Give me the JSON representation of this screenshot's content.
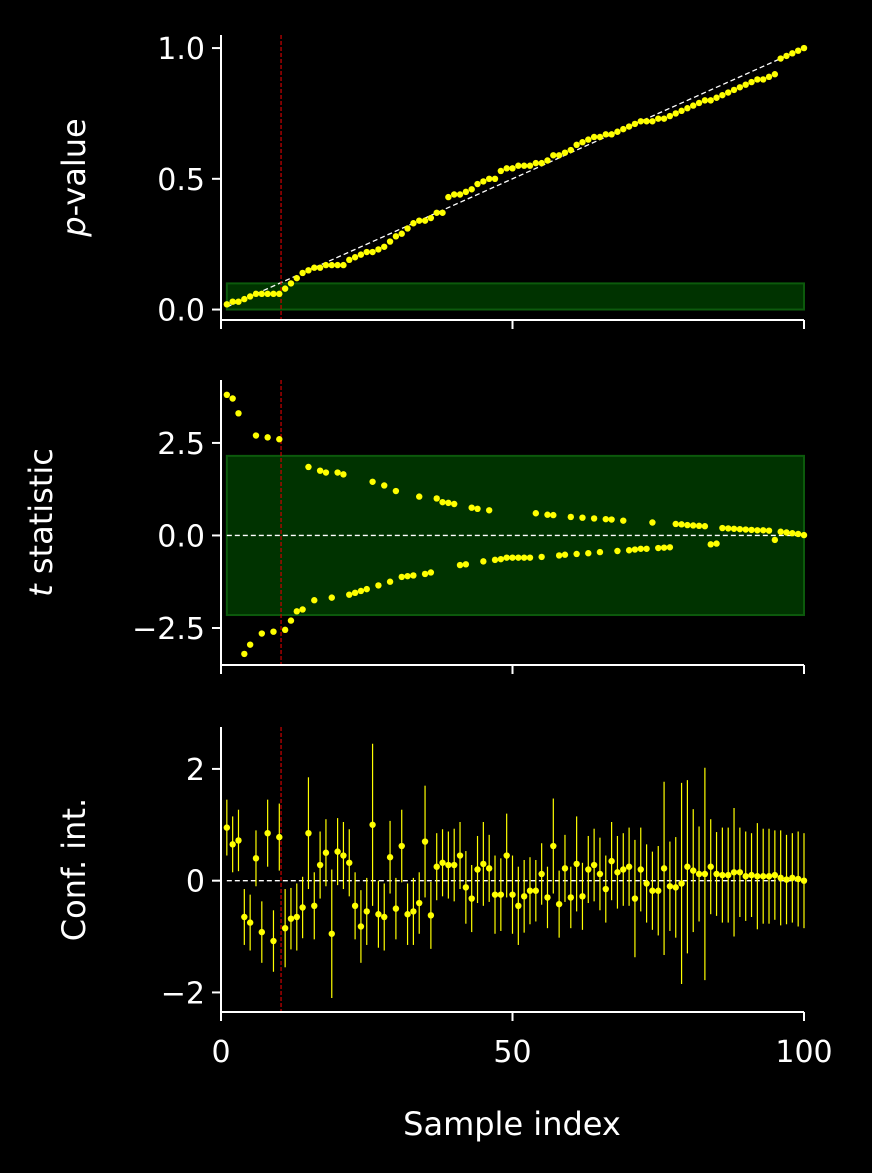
{
  "colors": {
    "background": "#000000",
    "axis": "#ffffff",
    "points": "#ffff00",
    "band": "#003300",
    "band_edge": "#0c5a0c",
    "cutoff": "#cc0000",
    "reference": "#ffffff"
  },
  "xlabel": "Sample index",
  "cutoff_x": 10.3,
  "chart_data": [
    {
      "id": "pvalue",
      "type": "scatter",
      "ylabel": "p-value",
      "ylabel_prefix": "p",
      "ylabel_suffix": "-value",
      "xlim": [
        0,
        100
      ],
      "ylim": [
        -0.04,
        1.05
      ],
      "xticks": [
        0,
        50,
        100
      ],
      "xticklabels": [
        "",
        "",
        ""
      ],
      "yticks": [
        0.0,
        0.5,
        1.0
      ],
      "yticklabels": [
        "0.0",
        "0.5",
        "1.0"
      ],
      "reference_line": {
        "type": "diagonal",
        "from": [
          1,
          0.01
        ],
        "to": [
          100,
          1.0
        ]
      },
      "band": {
        "x": [
          1,
          100
        ],
        "y": [
          0.0,
          0.1
        ]
      },
      "x": [
        1,
        2,
        3,
        4,
        5,
        6,
        7,
        8,
        9,
        10,
        11,
        12,
        13,
        14,
        15,
        16,
        17,
        18,
        19,
        20,
        21,
        22,
        23,
        24,
        25,
        26,
        27,
        28,
        29,
        30,
        31,
        32,
        33,
        34,
        35,
        36,
        37,
        38,
        39,
        40,
        41,
        42,
        43,
        44,
        45,
        46,
        47,
        48,
        49,
        50,
        51,
        52,
        53,
        54,
        55,
        56,
        57,
        58,
        59,
        60,
        61,
        62,
        63,
        64,
        65,
        66,
        67,
        68,
        69,
        70,
        71,
        72,
        73,
        74,
        75,
        76,
        77,
        78,
        79,
        80,
        81,
        82,
        83,
        84,
        85,
        86,
        87,
        88,
        89,
        90,
        91,
        92,
        93,
        94,
        95,
        96,
        97,
        98,
        99,
        100
      ],
      "y": [
        0.02,
        0.03,
        0.03,
        0.04,
        0.05,
        0.06,
        0.06,
        0.06,
        0.06,
        0.06,
        0.08,
        0.1,
        0.12,
        0.14,
        0.15,
        0.16,
        0.16,
        0.17,
        0.17,
        0.17,
        0.17,
        0.19,
        0.2,
        0.21,
        0.22,
        0.22,
        0.23,
        0.24,
        0.26,
        0.28,
        0.29,
        0.31,
        0.33,
        0.34,
        0.34,
        0.35,
        0.37,
        0.37,
        0.43,
        0.44,
        0.44,
        0.45,
        0.46,
        0.48,
        0.49,
        0.5,
        0.5,
        0.53,
        0.54,
        0.54,
        0.55,
        0.55,
        0.55,
        0.56,
        0.56,
        0.57,
        0.59,
        0.59,
        0.6,
        0.61,
        0.63,
        0.64,
        0.65,
        0.66,
        0.66,
        0.67,
        0.67,
        0.68,
        0.69,
        0.7,
        0.71,
        0.72,
        0.72,
        0.72,
        0.73,
        0.73,
        0.74,
        0.75,
        0.76,
        0.77,
        0.78,
        0.79,
        0.8,
        0.8,
        0.81,
        0.82,
        0.83,
        0.84,
        0.85,
        0.86,
        0.87,
        0.88,
        0.88,
        0.89,
        0.9,
        0.96,
        0.97,
        0.98,
        0.99,
        1.0
      ]
    },
    {
      "id": "tstat",
      "type": "scatter",
      "ylabel": "t statistic",
      "ylabel_prefix": "t",
      "ylabel_suffix": " statistic",
      "xlim": [
        0,
        100
      ],
      "ylim": [
        -3.5,
        4.2
      ],
      "xticks": [
        0,
        50,
        100
      ],
      "xticklabels": [
        "",
        "",
        ""
      ],
      "yticks": [
        -2.5,
        0.0,
        2.5
      ],
      "yticklabels": [
        "−2.5",
        "0.0",
        "2.5"
      ],
      "reference_line": {
        "type": "horizontal",
        "y": 0
      },
      "band": {
        "x": [
          1,
          100
        ],
        "y": [
          -2.15,
          2.15
        ]
      },
      "x": [
        1,
        2,
        3,
        4,
        5,
        6,
        7,
        8,
        9,
        10,
        11,
        12,
        13,
        14,
        15,
        16,
        17,
        18,
        19,
        20,
        21,
        22,
        23,
        24,
        25,
        26,
        27,
        28,
        29,
        30,
        31,
        32,
        33,
        34,
        35,
        36,
        37,
        38,
        39,
        40,
        41,
        42,
        43,
        44,
        45,
        46,
        47,
        48,
        49,
        50,
        51,
        52,
        53,
        54,
        55,
        56,
        57,
        58,
        59,
        60,
        61,
        62,
        63,
        64,
        65,
        66,
        67,
        68,
        69,
        70,
        71,
        72,
        73,
        74,
        75,
        76,
        77,
        78,
        79,
        80,
        81,
        82,
        83,
        84,
        85,
        86,
        87,
        88,
        89,
        90,
        91,
        92,
        93,
        94,
        95,
        96,
        97,
        98,
        99,
        100
      ],
      "y": [
        3.8,
        3.7,
        3.3,
        -3.2,
        -2.95,
        2.7,
        -2.65,
        2.65,
        -2.6,
        2.6,
        -2.55,
        -2.3,
        -2.05,
        -2.0,
        1.85,
        -1.75,
        1.75,
        1.7,
        -1.68,
        1.7,
        1.65,
        -1.6,
        -1.55,
        -1.5,
        -1.45,
        1.45,
        -1.35,
        1.35,
        -1.25,
        1.2,
        -1.12,
        -1.1,
        -1.08,
        1.05,
        -1.04,
        -1.0,
        1.0,
        0.9,
        0.88,
        0.85,
        -0.8,
        -0.78,
        0.75,
        0.72,
        -0.7,
        0.68,
        -0.66,
        -0.64,
        -0.6,
        -0.6,
        -0.6,
        -0.6,
        -0.6,
        0.6,
        -0.58,
        0.56,
        0.55,
        -0.54,
        -0.52,
        0.5,
        -0.5,
        0.48,
        -0.48,
        0.46,
        -0.45,
        0.44,
        0.43,
        -0.42,
        0.4,
        -0.4,
        -0.38,
        -0.36,
        -0.36,
        0.35,
        -0.34,
        -0.33,
        -0.32,
        0.31,
        0.3,
        0.28,
        0.27,
        0.26,
        0.25,
        -0.24,
        -0.22,
        0.2,
        0.19,
        0.18,
        0.17,
        0.16,
        0.15,
        0.14,
        0.14,
        0.13,
        -0.12,
        0.1,
        0.08,
        0.06,
        0.04,
        0.01
      ]
    },
    {
      "id": "confint",
      "type": "errorbar",
      "ylabel": "Conf. int.",
      "xlim": [
        0,
        100
      ],
      "ylim": [
        -2.35,
        2.75
      ],
      "xticks": [
        0,
        50,
        100
      ],
      "xticklabels": [
        "0",
        "50",
        "100"
      ],
      "yticks": [
        -2,
        0,
        2
      ],
      "yticklabels": [
        "−2",
        "0",
        "2"
      ],
      "reference_line": {
        "type": "horizontal",
        "y": 0
      },
      "x": [
        1,
        2,
        3,
        4,
        5,
        6,
        7,
        8,
        9,
        10,
        11,
        12,
        13,
        14,
        15,
        16,
        17,
        18,
        19,
        20,
        21,
        22,
        23,
        24,
        25,
        26,
        27,
        28,
        29,
        30,
        31,
        32,
        33,
        34,
        35,
        36,
        37,
        38,
        39,
        40,
        41,
        42,
        43,
        44,
        45,
        46,
        47,
        48,
        49,
        50,
        51,
        52,
        53,
        54,
        55,
        56,
        57,
        58,
        59,
        60,
        61,
        62,
        63,
        64,
        65,
        66,
        67,
        68,
        69,
        70,
        71,
        72,
        73,
        74,
        75,
        76,
        77,
        78,
        79,
        80,
        81,
        82,
        83,
        84,
        85,
        86,
        87,
        88,
        89,
        90,
        91,
        92,
        93,
        94,
        95,
        96,
        97,
        98,
        99,
        100
      ],
      "y": [
        0.95,
        0.65,
        0.72,
        -0.65,
        -0.75,
        0.4,
        -0.92,
        0.85,
        -1.08,
        0.78,
        -0.85,
        -0.68,
        -0.65,
        -0.48,
        0.85,
        -0.45,
        0.28,
        0.5,
        -0.95,
        0.52,
        0.45,
        0.32,
        -0.45,
        -0.82,
        -0.55,
        1.0,
        -0.6,
        -0.65,
        0.42,
        -0.5,
        0.62,
        -0.6,
        -0.55,
        -0.4,
        0.7,
        -0.62,
        0.25,
        0.32,
        0.28,
        0.28,
        0.45,
        -0.12,
        -0.32,
        0.2,
        0.3,
        0.22,
        -0.25,
        -0.25,
        0.45,
        -0.25,
        -0.45,
        -0.28,
        -0.18,
        -0.18,
        0.12,
        -0.3,
        0.62,
        -0.42,
        0.22,
        -0.3,
        0.3,
        -0.28,
        0.2,
        0.28,
        0.12,
        -0.15,
        0.35,
        0.15,
        0.2,
        0.25,
        -0.32,
        0.2,
        -0.05,
        -0.18,
        -0.18,
        0.22,
        -0.1,
        -0.12,
        -0.05,
        0.25,
        0.18,
        0.12,
        0.12,
        0.25,
        0.12,
        0.1,
        0.1,
        0.15,
        0.15,
        0.08,
        0.1,
        0.08,
        0.08,
        0.08,
        0.1,
        0.05,
        0.02,
        0.05,
        0.03,
        0.0
      ],
      "err": [
        0.5,
        0.5,
        0.55,
        0.5,
        0.5,
        0.5,
        0.55,
        0.6,
        0.55,
        0.6,
        0.7,
        0.55,
        0.6,
        0.55,
        1.0,
        0.6,
        0.6,
        0.6,
        1.15,
        0.6,
        0.6,
        0.6,
        0.6,
        0.65,
        0.6,
        1.45,
        0.6,
        0.6,
        0.65,
        0.55,
        0.65,
        0.55,
        0.6,
        0.55,
        1.0,
        0.6,
        0.6,
        0.6,
        0.6,
        0.65,
        0.6,
        0.65,
        0.6,
        0.6,
        0.75,
        0.6,
        0.7,
        0.65,
        0.75,
        0.7,
        0.7,
        0.65,
        0.6,
        0.55,
        0.55,
        0.55,
        0.85,
        0.6,
        0.6,
        0.55,
        0.85,
        0.6,
        0.6,
        0.65,
        0.65,
        0.6,
        0.7,
        0.65,
        0.65,
        0.7,
        1.05,
        0.75,
        0.7,
        0.7,
        0.8,
        1.55,
        0.8,
        0.9,
        1.8,
        1.55,
        1.1,
        0.85,
        1.9,
        0.85,
        0.75,
        0.85,
        0.85,
        1.15,
        0.8,
        0.8,
        0.75,
        0.95,
        0.85,
        0.85,
        0.8,
        0.85,
        0.8,
        0.8,
        0.85,
        0.85
      ]
    }
  ]
}
